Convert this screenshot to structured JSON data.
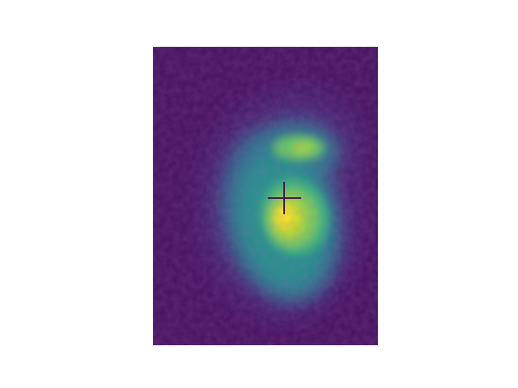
{
  "image": {
    "kind": "false-color intensity map",
    "colormap": "viridis",
    "colors": {
      "figure_background": "#ffffff",
      "field_background": "#45115f",
      "low": "#48186a",
      "mid_low": "#2f6c8e",
      "mid": "#21918c",
      "mid_high": "#5ec962",
      "high": "#fde725",
      "marker": "#3b1252"
    },
    "marker": {
      "shape": "crosshair",
      "icon": "crosshair-icon"
    }
  }
}
